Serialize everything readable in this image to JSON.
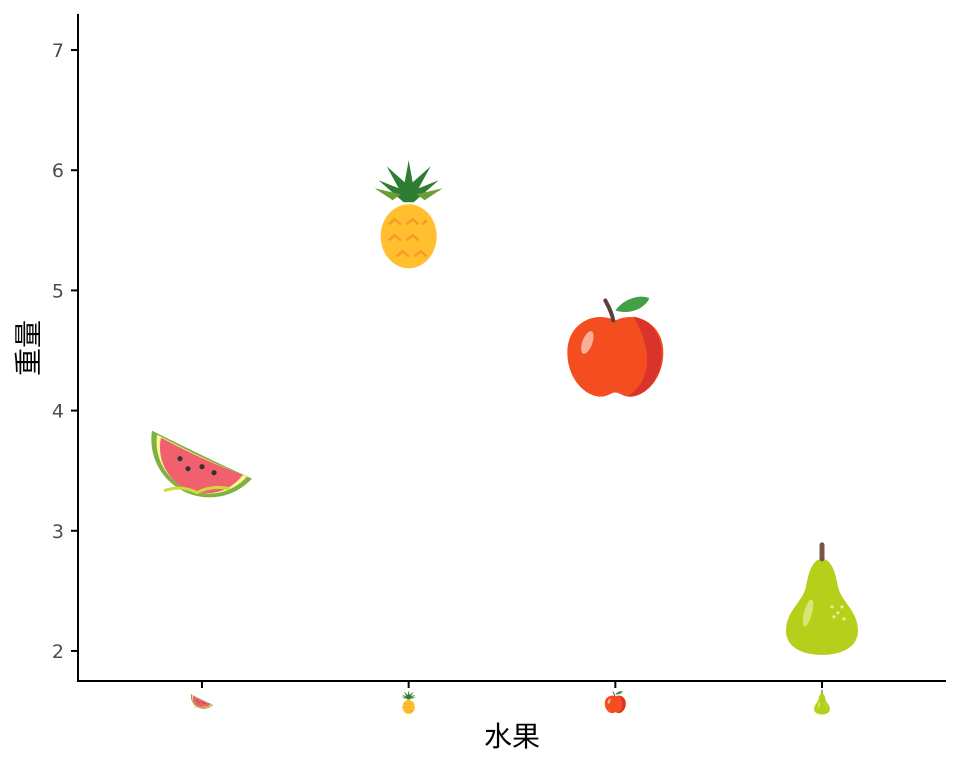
{
  "chart_data": {
    "type": "scatter",
    "title": "",
    "xlabel": "水果",
    "ylabel": "重量",
    "categories": [
      "watermelon",
      "pineapple",
      "apple",
      "pear"
    ],
    "series": [
      {
        "values": [
          3.5,
          5.6,
          4.5,
          2.4
        ],
        "markers": [
          "watermelon-icon",
          "pineapple-icon",
          "apple-icon",
          "pear-icon"
        ]
      }
    ],
    "ylim": [
      1.75,
      7.3
    ],
    "yticks": [
      "2",
      "3",
      "4",
      "5",
      "6",
      "7"
    ],
    "xtick_labels": [
      "watermelon-icon",
      "pineapple-icon",
      "apple-icon",
      "pear-icon"
    ],
    "grid": false,
    "legend": "none",
    "colors": {
      "axis": "#000000",
      "tick_text": "#4d4d4d",
      "watermelon_flesh": "#f0616d",
      "watermelon_rind": "#7cb342",
      "pineapple_body": "#ffbf2f",
      "pineapple_leaves": "#2e7d32",
      "apple_red": "#f44d1f",
      "pear_green": "#b5cf1a"
    }
  }
}
